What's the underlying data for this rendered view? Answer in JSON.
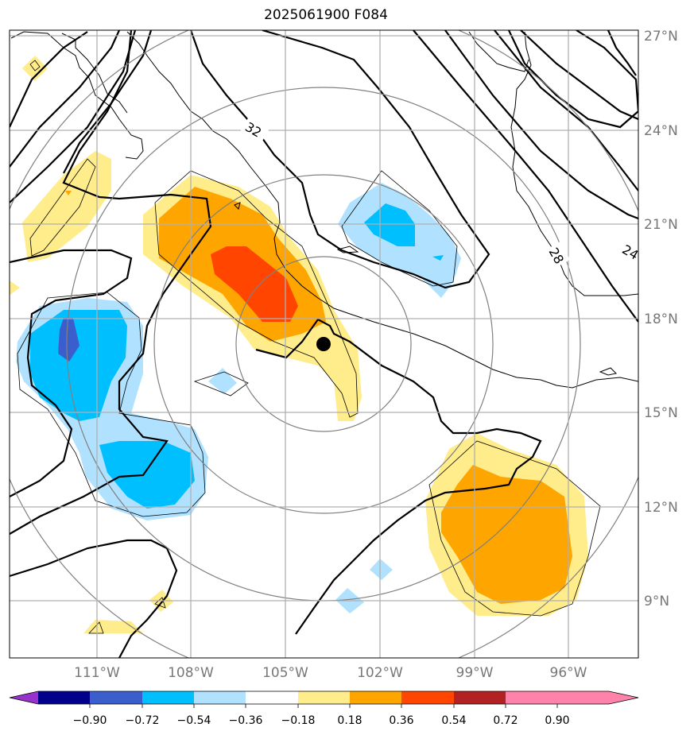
{
  "title": "2025061900 F084",
  "map": {
    "lat_labels": [
      "27°N",
      "24°N",
      "21°N",
      "18°N",
      "15°N",
      "12°N",
      "9°N"
    ],
    "lon_labels": [
      "111°W",
      "108°W",
      "105°W",
      "102°W",
      "99°W",
      "96°W"
    ],
    "contour_labels": [
      "32",
      "28",
      "24"
    ],
    "marker": "storm center"
  },
  "colorbar": {
    "colors": [
      "#9932cc",
      "#00008b",
      "#3a5fcd",
      "#00bfff",
      "#b0e2ff",
      "#ffffff",
      "#ffec8b",
      "#ffa500",
      "#ff4500",
      "#b22222",
      "#ff82ab"
    ],
    "labels": [
      "−0.90",
      "−0.72",
      "−0.54",
      "−0.36",
      "−0.18",
      "0.18",
      "0.36",
      "0.54",
      "0.72",
      "0.90"
    ]
  }
}
